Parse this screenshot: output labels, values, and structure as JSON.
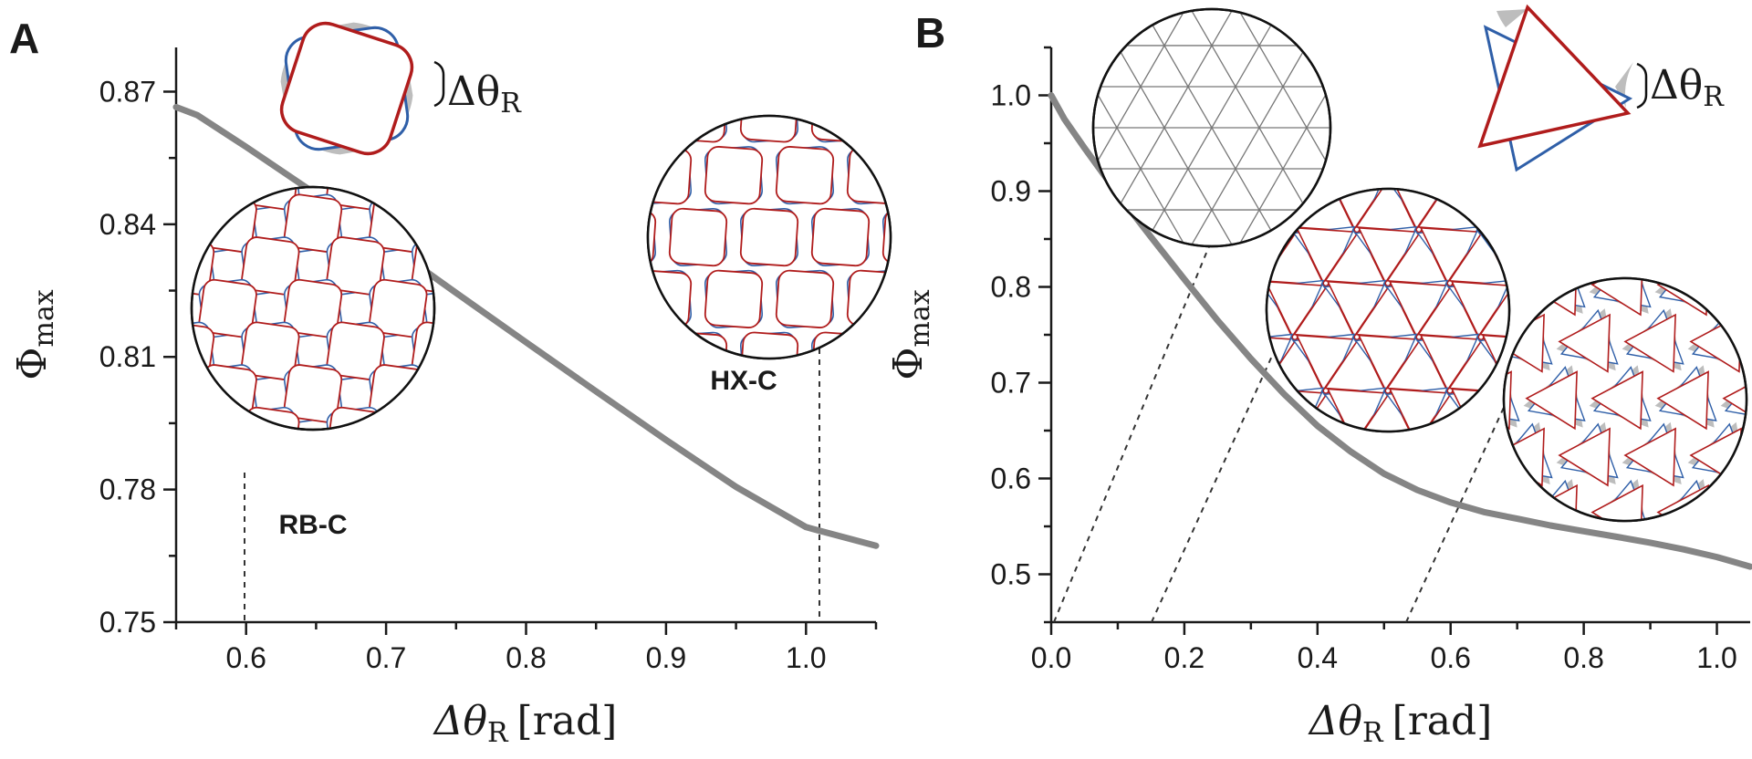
{
  "chart_data": [
    {
      "panel": "A",
      "type": "line",
      "xlabel": "Δθ_R [rad]",
      "ylabel": "Φ_max",
      "xlim": [
        0.55,
        1.05
      ],
      "ylim": [
        0.75,
        0.88
      ],
      "xticks": [
        "0.6",
        "0.7",
        "0.8",
        "0.9",
        "1.0"
      ],
      "yticks": [
        "0.75",
        "0.78",
        "0.81",
        "0.84",
        "0.87"
      ],
      "series": [
        {
          "x": [
            0.55,
            0.565,
            0.6,
            0.65,
            0.7,
            0.75,
            0.8,
            0.85,
            0.9,
            0.95,
            1.0,
            1.05
          ],
          "values": [
            0.8665,
            0.8647,
            0.8575,
            0.8468,
            0.8358,
            0.8245,
            0.8133,
            0.8022,
            0.7912,
            0.7806,
            0.7715,
            0.7673
          ]
        }
      ],
      "annotations": [
        {
          "text": "RB-C",
          "x": 0.6
        },
        {
          "text": "HX-C",
          "x": 1.01
        }
      ],
      "grid": false
    },
    {
      "panel": "B",
      "type": "line",
      "xlabel": "Δθ_R [rad]",
      "ylabel": "Φ_max",
      "xlim": [
        0.0,
        1.05
      ],
      "ylim": [
        0.45,
        1.05
      ],
      "xticks": [
        "0.0",
        "0.2",
        "0.4",
        "0.6",
        "0.8",
        "1.0"
      ],
      "yticks": [
        "0.5",
        "0.6",
        "0.7",
        "0.8",
        "0.9",
        "1.0"
      ],
      "series": [
        {
          "x": [
            0.0,
            0.02,
            0.05,
            0.1,
            0.15,
            0.2,
            0.25,
            0.3,
            0.35,
            0.4,
            0.45,
            0.5,
            0.55,
            0.6,
            0.65,
            0.7,
            0.75,
            0.8,
            0.85,
            0.9,
            0.95,
            1.0,
            1.05
          ],
          "values": [
            1.0,
            0.975,
            0.945,
            0.897,
            0.852,
            0.808,
            0.765,
            0.725,
            0.688,
            0.655,
            0.628,
            0.605,
            0.588,
            0.575,
            0.565,
            0.558,
            0.551,
            0.545,
            0.539,
            0.533,
            0.526,
            0.518,
            0.508
          ]
        }
      ],
      "annotations": [
        {
          "x": 0.0
        },
        {
          "x": 0.15
        },
        {
          "x": 0.535
        }
      ],
      "grid": false
    }
  ],
  "panels": {
    "a": {
      "letter": "A",
      "ylabel_main": "Φ",
      "ylabel_sub": "max",
      "xlabel_main": "Δθ",
      "xlabel_sub": "R",
      "xlabel_unit": "[rad]",
      "shape_label_main": "Δθ",
      "shape_label_sub": "R",
      "inset1_label": "RB-C",
      "inset2_label": "HX-C"
    },
    "b": {
      "letter": "B",
      "ylabel_main": "Φ",
      "ylabel_sub": "max",
      "xlabel_main": "Δθ",
      "xlabel_sub": "R",
      "xlabel_unit": "[rad]",
      "shape_label_main": "Δθ",
      "shape_label_sub": "R"
    }
  },
  "colors": {
    "curve": "#858585",
    "shape_red": "#b01c1c",
    "shape_blue": "#2f5fa8",
    "shade": "#bdbdbd",
    "axes": "#1a1a1a"
  }
}
